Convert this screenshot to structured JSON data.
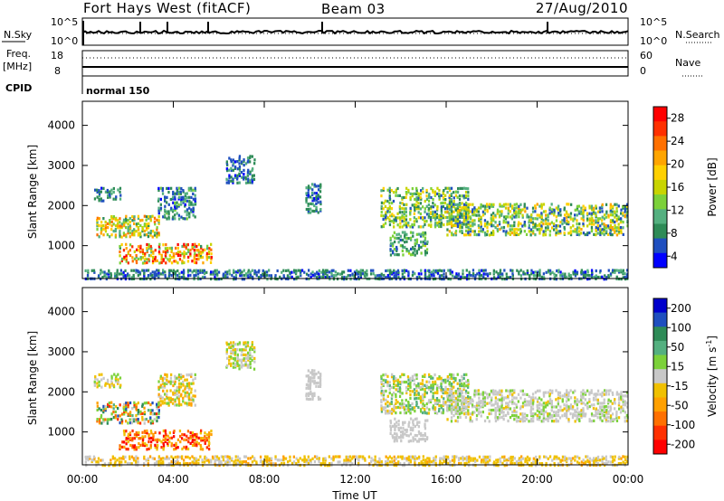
{
  "header": {
    "title": "Fort Hays West (fitACF)",
    "beam": "Beam 03",
    "date": "27/Aug/2010"
  },
  "top_panels": {
    "sky_label": "N.Sky",
    "search_label": "N.Search",
    "sky_ticks": [
      "10^5",
      "10^0"
    ],
    "freq_label": "Freq.",
    "freq_unit": "[MHz]",
    "freq_ticks": [
      "18",
      "8"
    ],
    "nave_label": "Nave",
    "nave_ticks": [
      "60",
      "0"
    ],
    "cpid_label": "CPID",
    "cpid_value": "normal 150"
  },
  "colors": {
    "power": [
      "#0000ff",
      "#1f4fbf",
      "#2e8b57",
      "#54b080",
      "#7cd13a",
      "#c8d400",
      "#ffd000",
      "#ffa500",
      "#ff7000",
      "#ff3000",
      "#ff0000"
    ],
    "velocity": [
      "#0000cc",
      "#1f4fbf",
      "#2e8b57",
      "#54b080",
      "#7cd13a",
      "#c8c8c8",
      "#f0c000",
      "#ffa000",
      "#ff7000",
      "#ff3000",
      "#ff0000"
    ]
  },
  "chart_data": [
    {
      "type": "heatmap",
      "panel": "power",
      "ylabel": "Slant Range [km]",
      "x_range": [
        "00:00",
        "24:00"
      ],
      "ylim": [
        180,
        4600
      ],
      "y_ticks": [
        "1000",
        "2000",
        "3000",
        "4000"
      ],
      "colorbar": {
        "label": "Power [dB]",
        "ticks": [
          "4",
          "8",
          "12",
          "16",
          "20",
          "24",
          "28"
        ],
        "range": [
          0,
          30
        ]
      },
      "echo_regions": [
        {
          "t": [
            0.6,
            3.4
          ],
          "r": [
            1250,
            1800
          ],
          "level": [
            6,
            24
          ]
        },
        {
          "t": [
            1.6,
            5.7
          ],
          "r": [
            600,
            1100
          ],
          "level": [
            8,
            30
          ]
        },
        {
          "t": [
            3.3,
            5.0
          ],
          "r": [
            1700,
            2500
          ],
          "level": [
            2,
            12
          ]
        },
        {
          "t": [
            0.5,
            1.7
          ],
          "r": [
            2150,
            2500
          ],
          "level": [
            2,
            10
          ]
        },
        {
          "t": [
            6.3,
            7.6
          ],
          "r": [
            2600,
            3300
          ],
          "level": [
            2,
            10
          ]
        },
        {
          "t": [
            9.8,
            10.5
          ],
          "r": [
            1850,
            2600
          ],
          "level": [
            2,
            10
          ]
        },
        {
          "t": [
            13.1,
            17.0
          ],
          "r": [
            1500,
            2500
          ],
          "level": [
            4,
            18
          ]
        },
        {
          "t": [
            16.0,
            24.0
          ],
          "r": [
            1300,
            2100
          ],
          "level": [
            4,
            20
          ]
        },
        {
          "t": [
            13.5,
            15.2
          ],
          "r": [
            800,
            1400
          ],
          "level": [
            4,
            14
          ]
        },
        {
          "t": [
            0.1,
            24.0
          ],
          "r": [
            200,
            450
          ],
          "level": [
            2,
            10
          ]
        }
      ]
    },
    {
      "type": "heatmap",
      "panel": "velocity",
      "ylabel": "Slant Range [km]",
      "xlabel": "Time UT",
      "x_ticks": [
        "00:00",
        "04:00",
        "08:00",
        "12:00",
        "16:00",
        "20:00",
        "00:00"
      ],
      "ylim": [
        180,
        4600
      ],
      "y_ticks": [
        "1000",
        "2000",
        "3000",
        "4000"
      ],
      "colorbar": {
        "label": "Velocity [m s^-1]",
        "ticks": [
          "200",
          "100",
          "50",
          "15",
          "-15",
          "-50",
          "-100",
          "-200"
        ],
        "range": [
          -250,
          250
        ]
      },
      "echo_regions": [
        {
          "t": [
            0.6,
            3.4
          ],
          "r": [
            1250,
            1800
          ],
          "level": [
            -200,
            200
          ]
        },
        {
          "t": [
            1.6,
            5.7
          ],
          "r": [
            600,
            1100
          ],
          "level": [
            -250,
            -30
          ]
        },
        {
          "t": [
            3.3,
            5.0
          ],
          "r": [
            1700,
            2500
          ],
          "level": [
            -100,
            50
          ]
        },
        {
          "t": [
            0.5,
            1.7
          ],
          "r": [
            2150,
            2500
          ],
          "level": [
            -60,
            60
          ]
        },
        {
          "t": [
            6.3,
            7.6
          ],
          "r": [
            2600,
            3300
          ],
          "level": [
            -60,
            60
          ]
        },
        {
          "t": [
            9.8,
            10.5
          ],
          "r": [
            1850,
            2600
          ],
          "level": [
            -15,
            15
          ]
        },
        {
          "t": [
            13.1,
            17.0
          ],
          "r": [
            1500,
            2500
          ],
          "level": [
            -60,
            100
          ]
        },
        {
          "t": [
            16.0,
            24.0
          ],
          "r": [
            1300,
            2100
          ],
          "level": [
            -30,
            40
          ]
        },
        {
          "t": [
            13.5,
            15.2
          ],
          "r": [
            800,
            1400
          ],
          "level": [
            -20,
            20
          ]
        },
        {
          "t": [
            0.1,
            24.0
          ],
          "r": [
            200,
            450
          ],
          "level": [
            -80,
            10
          ]
        }
      ]
    }
  ]
}
